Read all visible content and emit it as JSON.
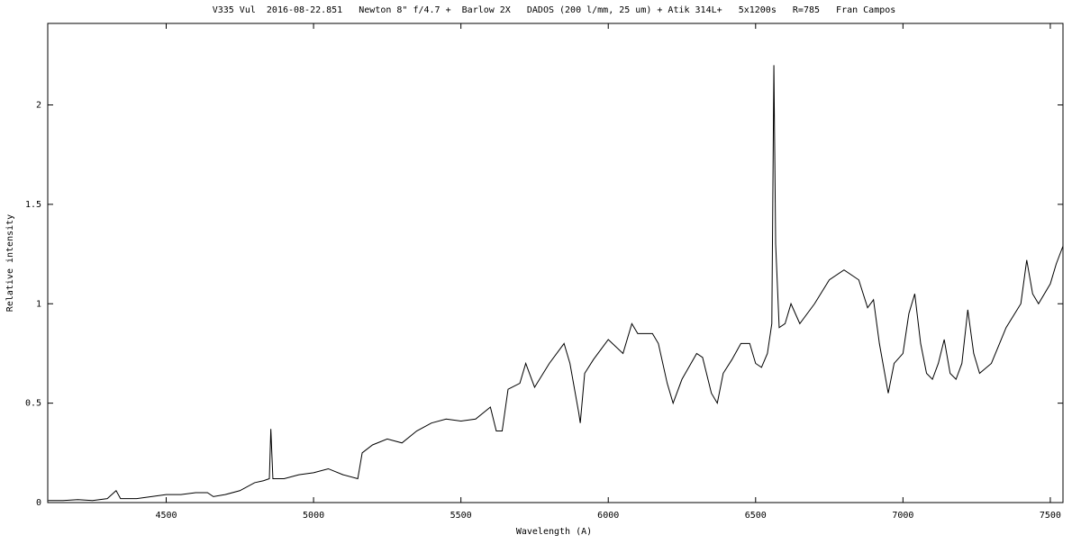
{
  "chart_data": {
    "type": "line",
    "title": "V335 Vul  2016-08-22.851   Newton 8\" f/4.7 +  Barlow 2X   DADOS (200 l/mm, 25 um) + Atik 314L+   5x1200s   R=785   Fran Campos",
    "x_label": "Wavelength (A)",
    "y_label": "Relative intensity",
    "color": "#000000",
    "x": [
      4100,
      4150,
      4200,
      4250,
      4300,
      4330,
      4345,
      4400,
      4450,
      4500,
      4550,
      4600,
      4640,
      4660,
      4700,
      4750,
      4800,
      4830,
      4850,
      4855,
      4862,
      4900,
      4950,
      5000,
      5050,
      5100,
      5150,
      5165,
      5200,
      5250,
      5300,
      5350,
      5400,
      5450,
      5500,
      5550,
      5600,
      5620,
      5640,
      5660,
      5700,
      5720,
      5750,
      5800,
      5850,
      5870,
      5900,
      5905,
      5920,
      5950,
      6000,
      6050,
      6080,
      6100,
      6150,
      6170,
      6200,
      6220,
      6250,
      6300,
      6320,
      6350,
      6370,
      6390,
      6420,
      6450,
      6480,
      6500,
      6520,
      6540,
      6555,
      6562,
      6568,
      6580,
      6600,
      6620,
      6650,
      6700,
      6750,
      6800,
      6850,
      6880,
      6900,
      6920,
      6950,
      6970,
      7000,
      7020,
      7040,
      7060,
      7080,
      7100,
      7120,
      7140,
      7160,
      7180,
      7200,
      7220,
      7240,
      7260,
      7300,
      7350,
      7400,
      7420,
      7440,
      7460,
      7500,
      7520,
      7543
    ],
    "values": [
      0.01,
      0.01,
      0.015,
      0.01,
      0.02,
      0.06,
      0.02,
      0.02,
      0.03,
      0.04,
      0.04,
      0.05,
      0.05,
      0.03,
      0.04,
      0.06,
      0.1,
      0.11,
      0.12,
      0.37,
      0.12,
      0.12,
      0.14,
      0.15,
      0.17,
      0.14,
      0.12,
      0.25,
      0.29,
      0.32,
      0.3,
      0.36,
      0.4,
      0.42,
      0.41,
      0.42,
      0.48,
      0.36,
      0.36,
      0.57,
      0.6,
      0.7,
      0.58,
      0.7,
      0.8,
      0.7,
      0.45,
      0.4,
      0.65,
      0.72,
      0.82,
      0.75,
      0.9,
      0.85,
      0.85,
      0.8,
      0.6,
      0.5,
      0.62,
      0.75,
      0.73,
      0.55,
      0.5,
      0.65,
      0.72,
      0.8,
      0.8,
      0.7,
      0.68,
      0.75,
      0.9,
      2.2,
      1.3,
      0.88,
      0.9,
      1.0,
      0.9,
      1.0,
      1.12,
      1.17,
      1.12,
      0.98,
      1.02,
      0.8,
      0.55,
      0.7,
      0.75,
      0.95,
      1.05,
      0.8,
      0.65,
      0.62,
      0.7,
      0.82,
      0.65,
      0.62,
      0.7,
      0.97,
      0.75,
      0.65,
      0.7,
      0.88,
      1.0,
      1.22,
      1.05,
      1.0,
      1.1,
      1.2,
      1.29
    ],
    "xlim": [
      4098,
      7543
    ],
    "ylim": [
      0,
      2.41
    ],
    "xticks": [
      4500,
      5000,
      5500,
      6000,
      6500,
      7000,
      7500
    ],
    "yticks": [
      0,
      0.5,
      1,
      1.5,
      2
    ]
  }
}
